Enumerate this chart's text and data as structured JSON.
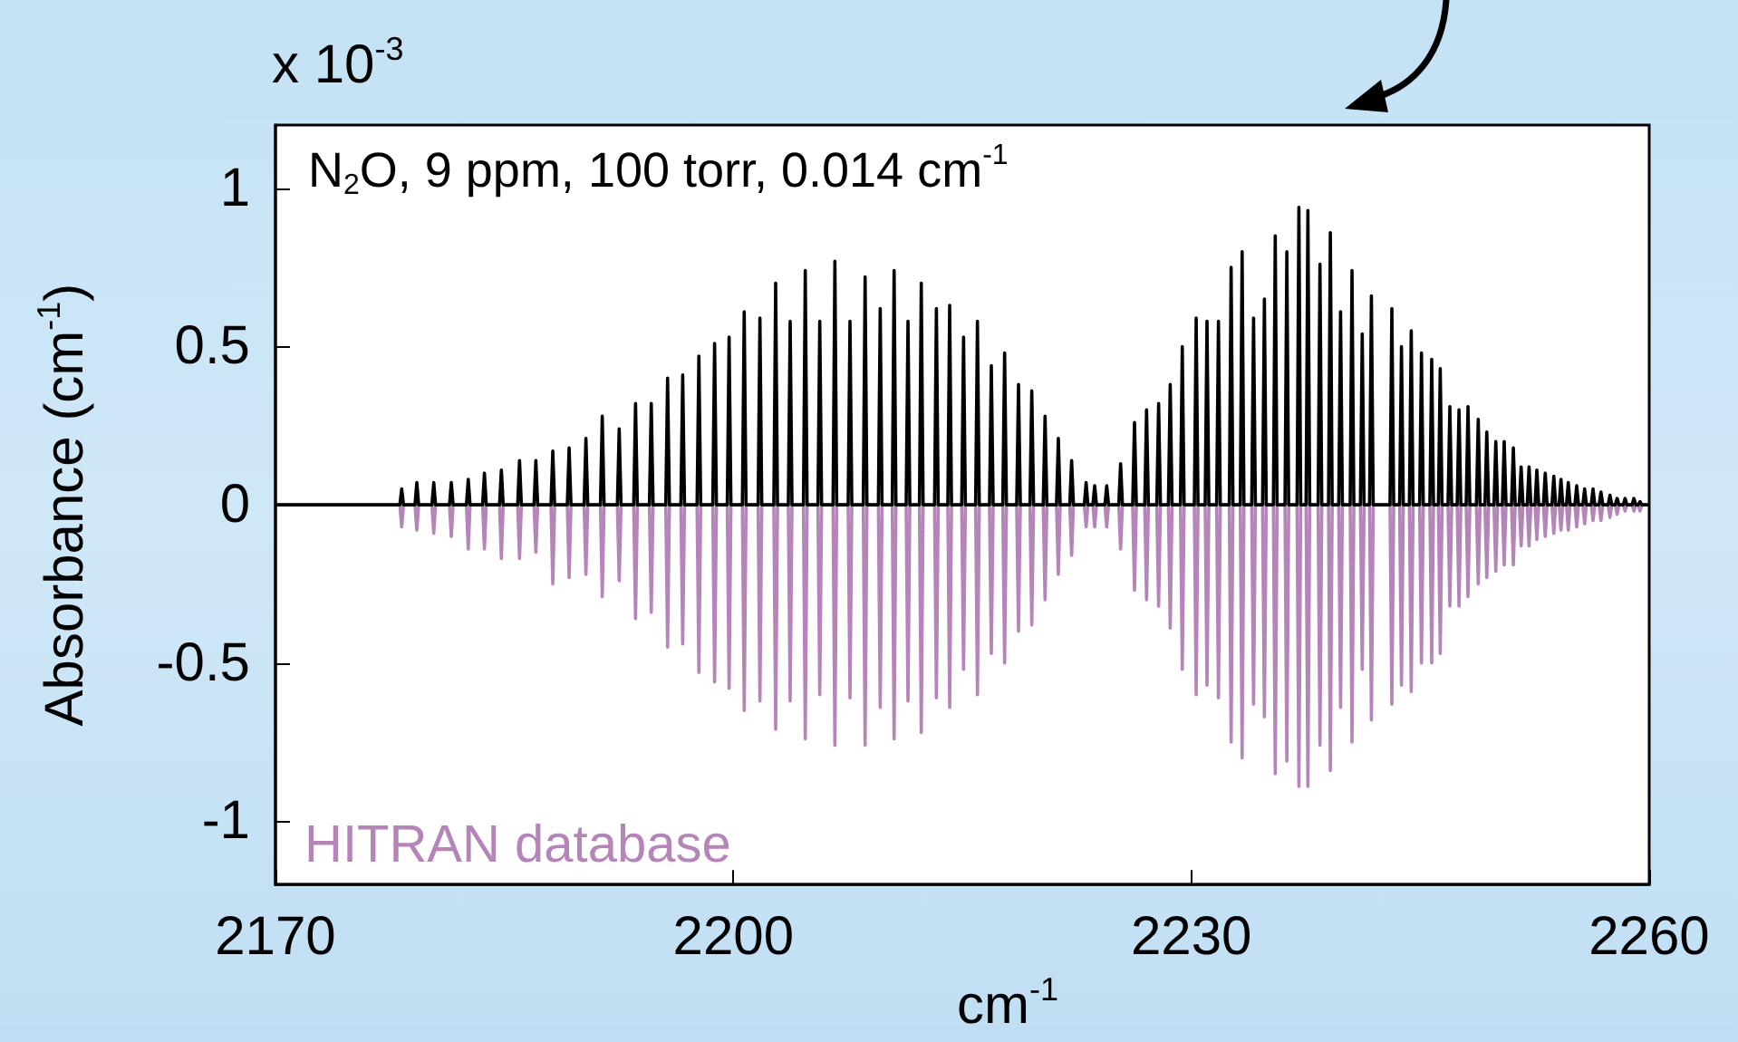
{
  "chart_data": {
    "type": "line",
    "xlabel": "cm$^{-1}$",
    "ylabel": "Absorbance (cm$^{-1}$)",
    "annotations": [
      "x 10$^{-3}$",
      "N$_{2}$O, 9 ppm, 100 torr, 0.014 cm$^{-1}$"
    ],
    "xlim": [
      2170,
      2260
    ],
    "xticks": [
      2170,
      2200,
      2230,
      2260
    ],
    "ylim": [
      -1.2,
      1.2
    ],
    "yticks": [
      {
        "value": -1,
        "label": "-1"
      },
      {
        "value": -0.5,
        "label": "-0.5"
      },
      0,
      0.5,
      1
    ],
    "marker": "none",
    "legend": false,
    "x": [
      2170,
      2178.15,
      2178.27,
      2178.39,
      2179.14,
      2179.26,
      2179.38,
      2180.25,
      2180.37,
      2180.49,
      2181.4,
      2181.52,
      2181.64,
      2182.51,
      2182.63,
      2182.75,
      2183.57,
      2183.69,
      2183.81,
      2184.68,
      2184.8,
      2184.92,
      2185.87,
      2185.99,
      2186.11,
      2186.94,
      2187.06,
      2187.18,
      2188.05,
      2188.17,
      2188.29,
      2189.12,
      2189.24,
      2189.36,
      2190.22,
      2190.34,
      2190.46,
      2191.29,
      2191.41,
      2191.53,
      2192.4,
      2192.52,
      2192.64,
      2193.47,
      2193.59,
      2193.71,
      2194.5,
      2194.62,
      2194.74,
      2195.57,
      2195.69,
      2195.81,
      2196.56,
      2196.68,
      2196.8,
      2197.62,
      2197.74,
      2197.86,
      2198.65,
      2198.77,
      2198.89,
      2199.6,
      2199.72,
      2199.84,
      2200.59,
      2200.71,
      2200.83,
      2201.62,
      2201.74,
      2201.86,
      2202.65,
      2202.77,
      2202.89,
      2203.6,
      2203.72,
      2203.84,
      2204.59,
      2204.71,
      2204.83,
      2205.54,
      2205.66,
      2205.78,
      2206.53,
      2206.65,
      2206.77,
      2207.52,
      2207.64,
      2207.76,
      2208.51,
      2208.63,
      2208.75,
      2209.5,
      2209.62,
      2209.74,
      2210.41,
      2210.53,
      2210.65,
      2211.32,
      2211.44,
      2211.56,
      2212.19,
      2212.31,
      2212.43,
      2213.18,
      2213.3,
      2213.42,
      2214.05,
      2214.17,
      2214.29,
      2214.96,
      2215.08,
      2215.2,
      2215.87,
      2215.99,
      2216.11,
      2216.78,
      2216.9,
      2217.02,
      2217.65,
      2217.77,
      2217.89,
      2218.56,
      2218.68,
      2218.8,
      2219.43,
      2219.55,
      2219.67,
      2220.3,
      2220.42,
      2220.54,
      2221.17,
      2221.29,
      2221.41,
      2222.04,
      2222.16,
      2222.28,
      2222.99,
      2223.11,
      2223.23,
      2223.55,
      2223.67,
      2223.79,
      2224.34,
      2224.46,
      2224.58,
      2225.25,
      2225.37,
      2225.49,
      2226.16,
      2226.28,
      2226.4,
      2226.95,
      2227.07,
      2227.19,
      2227.74,
      2227.86,
      2227.98,
      2228.5,
      2228.62,
      2228.74,
      2229.29,
      2229.41,
      2229.53,
      2230.2,
      2230.32,
      2230.44,
      2230.91,
      2231.03,
      2231.15,
      2231.66,
      2231.78,
      2231.9,
      2232.49,
      2232.61,
      2232.73,
      2233.21,
      2233.33,
      2233.45,
      2233.96,
      2234.08,
      2234.2,
      2234.67,
      2234.79,
      2234.91,
      2235.38,
      2235.5,
      2235.62,
      2236.14,
      2236.26,
      2236.38,
      2236.93,
      2237.05,
      2237.17,
      2237.52,
      2237.64,
      2237.76,
      2238.31,
      2238.43,
      2238.55,
      2238.99,
      2239.11,
      2239.23,
      2239.66,
      2239.78,
      2239.9,
      2240.41,
      2240.53,
      2240.65,
      2241.08,
      2241.2,
      2241.32,
      2241.68,
      2241.8,
      2241.92,
      2243.02,
      2243.14,
      2243.26,
      2243.65,
      2243.77,
      2243.89,
      2244.29,
      2244.41,
      2244.53,
      2244.96,
      2245.08,
      2245.2,
      2245.63,
      2245.75,
      2245.87,
      2246.19,
      2246.31,
      2246.43,
      2246.82,
      2246.94,
      2247.06,
      2247.42,
      2247.54,
      2247.66,
      2248.01,
      2248.13,
      2248.25,
      2248.68,
      2248.8,
      2248.92,
      2249.24,
      2249.36,
      2249.48,
      2249.83,
      2249.95,
      2250.07,
      2250.38,
      2250.5,
      2250.62,
      2250.98,
      2251.1,
      2251.22,
      2251.49,
      2251.61,
      2251.73,
      2252.01,
      2252.13,
      2252.25,
      2252.52,
      2252.64,
      2252.76,
      2253.07,
      2253.19,
      2253.31,
      2253.63,
      2253.75,
      2253.87,
      2254.1,
      2254.22,
      2254.34,
      2254.58,
      2254.7,
      2254.82,
      2255.13,
      2255.25,
      2255.37,
      2255.65,
      2255.77,
      2255.89,
      2256.2,
      2256.32,
      2256.44,
      2256.72,
      2256.84,
      2256.96,
      2257.31,
      2257.43,
      2257.55,
      2257.78,
      2257.9,
      2258.02,
      2258.3,
      2258.42,
      2258.54,
      2258.88,
      2259,
      2259.12,
      2259.28,
      2259.4,
      2259.52,
      2260
    ],
    "series": [
      {
        "name": "HITRAN database",
        "color": "#b585b9",
        "values": [
          0,
          0,
          -0.07,
          0,
          0,
          -0.08,
          0,
          0,
          -0.09,
          0,
          0,
          -0.1,
          0,
          0,
          -0.14,
          0,
          0,
          -0.14,
          0,
          0,
          -0.17,
          0,
          0,
          -0.17,
          0,
          0,
          -0.15,
          0,
          0,
          -0.25,
          0,
          0,
          -0.23,
          0,
          0,
          -0.22,
          0,
          0,
          -0.29,
          0,
          0,
          -0.24,
          0,
          0,
          -0.36,
          0,
          0,
          -0.34,
          0,
          0,
          -0.45,
          0,
          0,
          -0.44,
          0,
          0,
          -0.53,
          0,
          0,
          -0.56,
          0,
          0,
          -0.58,
          0,
          0,
          -0.65,
          0,
          0,
          -0.62,
          0,
          0,
          -0.71,
          0,
          0,
          -0.62,
          0,
          0,
          -0.74,
          0,
          0,
          -0.6,
          0,
          0,
          -0.76,
          0,
          0,
          -0.61,
          0,
          0,
          -0.76,
          0,
          0,
          -0.64,
          0,
          0,
          -0.74,
          0,
          0,
          -0.62,
          0,
          0,
          -0.72,
          0,
          0,
          -0.61,
          0,
          0,
          -0.64,
          0,
          0,
          -0.52,
          0,
          0,
          -0.6,
          0,
          0,
          -0.47,
          0,
          0,
          -0.5,
          0,
          0,
          -0.4,
          0,
          0,
          -0.38,
          0,
          0,
          -0.3,
          0,
          0,
          -0.22,
          0,
          0,
          -0.16,
          0,
          0,
          -0.07,
          0,
          0,
          -0.07,
          0,
          0,
          -0.07,
          0,
          0,
          -0.14,
          0,
          0,
          -0.27,
          0,
          0,
          -0.3,
          0,
          0,
          -0.32,
          0,
          0,
          -0.39,
          0,
          0,
          -0.52,
          0,
          0,
          -0.6,
          0,
          0,
          -0.57,
          0,
          0,
          -0.61,
          0,
          0,
          -0.75,
          0,
          0,
          -0.8,
          0,
          0,
          -0.63,
          0,
          0,
          -0.67,
          0,
          0,
          -0.85,
          0,
          0,
          -0.81,
          0,
          0,
          -0.89,
          0,
          0,
          -0.89,
          0,
          0,
          -0.76,
          0,
          0,
          -0.84,
          0,
          0,
          -0.64,
          0,
          0,
          -0.75,
          0,
          0,
          -0.52,
          0,
          0,
          -0.68,
          0,
          0,
          -0.63,
          0,
          0,
          -0.57,
          0,
          0,
          -0.59,
          0,
          0,
          -0.5,
          0,
          0,
          -0.5,
          0,
          0,
          -0.47,
          0,
          0,
          -0.32,
          0,
          0,
          -0.32,
          0,
          0,
          -0.29,
          0,
          0,
          -0.25,
          0,
          0,
          -0.23,
          0,
          0,
          -0.21,
          0,
          0,
          -0.19,
          0,
          0,
          -0.19,
          0,
          0,
          -0.13,
          0,
          0,
          -0.13,
          0,
          0,
          -0.11,
          0,
          0,
          -0.1,
          0,
          0,
          -0.09,
          0,
          0,
          -0.08,
          0,
          0,
          -0.08,
          0,
          0,
          -0.07,
          0,
          0,
          -0.06,
          0,
          0,
          -0.05,
          0,
          0,
          -0.05,
          0,
          0,
          -0.04,
          0,
          0,
          -0.03,
          0,
          0,
          -0.02,
          0,
          0,
          -0.02,
          0,
          0,
          -0.02,
          0,
          0
        ]
      },
      {
        "color": "#000000",
        "values": [
          0,
          0,
          0.05,
          0,
          0,
          0.07,
          0,
          0,
          0.07,
          0,
          0,
          0.07,
          0,
          0,
          0.08,
          0,
          0,
          0.1,
          0,
          0,
          0.11,
          0,
          0,
          0.14,
          0,
          0,
          0.14,
          0,
          0,
          0.17,
          0,
          0,
          0.18,
          0,
          0,
          0.21,
          0,
          0,
          0.28,
          0,
          0,
          0.24,
          0,
          0,
          0.32,
          0,
          0,
          0.32,
          0,
          0,
          0.4,
          0,
          0,
          0.41,
          0,
          0,
          0.47,
          0,
          0,
          0.51,
          0,
          0,
          0.53,
          0,
          0,
          0.61,
          0,
          0,
          0.59,
          0,
          0,
          0.7,
          0,
          0,
          0.58,
          0,
          0,
          0.74,
          0,
          0,
          0.58,
          0,
          0,
          0.77,
          0,
          0,
          0.58,
          0,
          0,
          0.72,
          0,
          0,
          0.62,
          0,
          0,
          0.74,
          0,
          0,
          0.58,
          0,
          0,
          0.7,
          0,
          0,
          0.62,
          0,
          0,
          0.63,
          0,
          0,
          0.53,
          0,
          0,
          0.58,
          0,
          0,
          0.44,
          0,
          0,
          0.48,
          0,
          0,
          0.38,
          0,
          0,
          0.36,
          0,
          0,
          0.28,
          0,
          0,
          0.21,
          0,
          0,
          0.14,
          0,
          0,
          0.07,
          0,
          0,
          0.06,
          0,
          0,
          0.06,
          0,
          0,
          0.13,
          0,
          0,
          0.26,
          0,
          0,
          0.3,
          0,
          0,
          0.32,
          0,
          0,
          0.38,
          0,
          0,
          0.5,
          0,
          0,
          0.59,
          0,
          0,
          0.58,
          0,
          0,
          0.58,
          0,
          0,
          0.75,
          0,
          0,
          0.8,
          0,
          0,
          0.59,
          0,
          0,
          0.65,
          0,
          0,
          0.85,
          0,
          0,
          0.8,
          0,
          0,
          0.94,
          0,
          0,
          0.93,
          0,
          0,
          0.76,
          0,
          0,
          0.86,
          0,
          0,
          0.61,
          0,
          0,
          0.74,
          0,
          0,
          0.54,
          0,
          0,
          0.66,
          0,
          0,
          0.62,
          0,
          0,
          0.5,
          0,
          0,
          0.55,
          0,
          0,
          0.48,
          0,
          0,
          0.46,
          0,
          0,
          0.43,
          0,
          0,
          0.31,
          0,
          0,
          0.3,
          0,
          0,
          0.31,
          0,
          0,
          0.27,
          0,
          0,
          0.23,
          0,
          0,
          0.2,
          0,
          0,
          0.2,
          0,
          0,
          0.18,
          0,
          0,
          0.12,
          0,
          0,
          0.12,
          0,
          0,
          0.11,
          0,
          0,
          0.1,
          0,
          0,
          0.09,
          0,
          0,
          0.08,
          0,
          0,
          0.07,
          0,
          0,
          0.06,
          0,
          0,
          0.05,
          0,
          0,
          0.05,
          0,
          0,
          0.04,
          0,
          0,
          0.03,
          0,
          0,
          0.02,
          0,
          0,
          0.02,
          0,
          0,
          0.02,
          0,
          0,
          0.01,
          0,
          0
        ]
      }
    ]
  }
}
